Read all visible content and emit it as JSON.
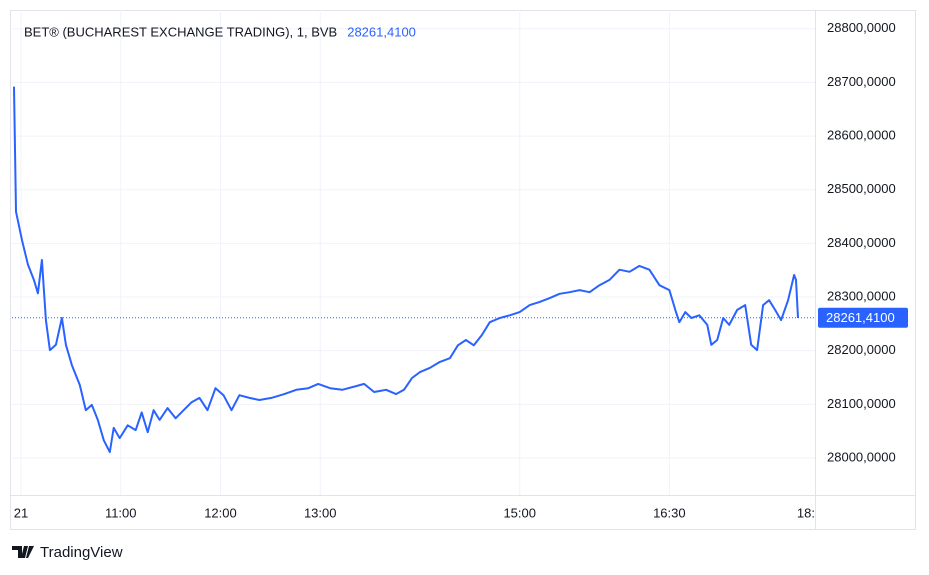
{
  "chart_data": {
    "type": "line",
    "title": "BET® (BUCHAREST EXCHANGE TRADING), 1, BVB",
    "last_value": {
      "value": 28261.41,
      "label": "28261,4100"
    },
    "brand": "TradingView",
    "color": "#2962ff",
    "grid": true,
    "xlim": [
      9.91,
      17.96
    ],
    "xticks": [
      {
        "value": 10,
        "label": "21"
      },
      {
        "value": 11,
        "label": "11:00"
      },
      {
        "value": 12,
        "label": "12:00"
      },
      {
        "value": 13,
        "label": "13:00"
      },
      {
        "value": 15,
        "label": "15:00"
      },
      {
        "value": 16.5,
        "label": "16:30"
      },
      {
        "value": 18,
        "label": "18:"
      }
    ],
    "ylim": [
      27931,
      28835
    ],
    "yticks": [
      {
        "value": 28000,
        "label": "28000,0000"
      },
      {
        "value": 28100,
        "label": "28100,0000"
      },
      {
        "value": 28200,
        "label": "28200,0000"
      },
      {
        "value": 28300,
        "label": "28300,0000"
      },
      {
        "value": 28400,
        "label": "28400,0000"
      },
      {
        "value": 28500,
        "label": "28500,0000"
      },
      {
        "value": 28600,
        "label": "28600,0000"
      },
      {
        "value": 28700,
        "label": "28700,0000"
      },
      {
        "value": 28800,
        "label": "28800,0000"
      }
    ],
    "x": [
      9.93,
      9.95,
      10.01,
      10.07,
      10.13,
      10.17,
      10.21,
      10.25,
      10.29,
      10.35,
      10.41,
      10.45,
      10.51,
      10.59,
      10.65,
      10.71,
      10.77,
      10.83,
      10.89,
      10.93,
      10.99,
      11.07,
      11.15,
      11.21,
      11.27,
      11.33,
      11.39,
      11.47,
      11.55,
      11.63,
      11.71,
      11.79,
      11.87,
      11.95,
      12.03,
      12.11,
      12.19,
      12.29,
      12.39,
      12.51,
      12.64,
      12.76,
      12.88,
      12.98,
      13.1,
      13.22,
      13.36,
      13.44,
      13.54,
      13.66,
      13.76,
      13.84,
      13.92,
      14.0,
      14.1,
      14.2,
      14.3,
      14.38,
      14.46,
      14.54,
      14.62,
      14.7,
      14.8,
      14.9,
      15.0,
      15.1,
      15.2,
      15.3,
      15.4,
      15.5,
      15.6,
      15.7,
      15.8,
      15.9,
      16.0,
      16.1,
      16.2,
      16.3,
      16.4,
      16.5,
      16.56,
      16.6,
      16.66,
      16.72,
      16.8,
      16.88,
      16.92,
      16.98,
      17.04,
      17.1,
      17.18,
      17.26,
      17.32,
      17.38,
      17.44,
      17.5,
      17.56,
      17.62,
      17.69,
      17.75,
      17.77,
      17.79
    ],
    "values": [
      28692,
      28459,
      28406,
      28360,
      28332,
      28307,
      28369,
      28257,
      28201,
      28211,
      28261,
      28211,
      28173,
      28136,
      28089,
      28099,
      28071,
      28033,
      28011,
      28056,
      28037,
      28061,
      28052,
      28085,
      28048,
      28089,
      28071,
      28093,
      28074,
      28089,
      28104,
      28112,
      28089,
      28130,
      28117,
      28089,
      28117,
      28112,
      28108,
      28112,
      28119,
      28127,
      28130,
      28138,
      28130,
      28127,
      28134,
      28138,
      28123,
      28127,
      28119,
      28127,
      28149,
      28160,
      28168,
      28179,
      28186,
      28210,
      28220,
      28210,
      28229,
      28253,
      28261,
      28266,
      28272,
      28285,
      28291,
      28298,
      28306,
      28309,
      28313,
      28309,
      28322,
      28332,
      28351,
      28347,
      28358,
      28351,
      28322,
      28313,
      28276,
      28253,
      28272,
      28261,
      28266,
      28248,
      28211,
      28220,
      28261,
      28248,
      28276,
      28285,
      28211,
      28201,
      28285,
      28294,
      28276,
      28257,
      28294,
      28341,
      28332,
      28261
    ]
  }
}
